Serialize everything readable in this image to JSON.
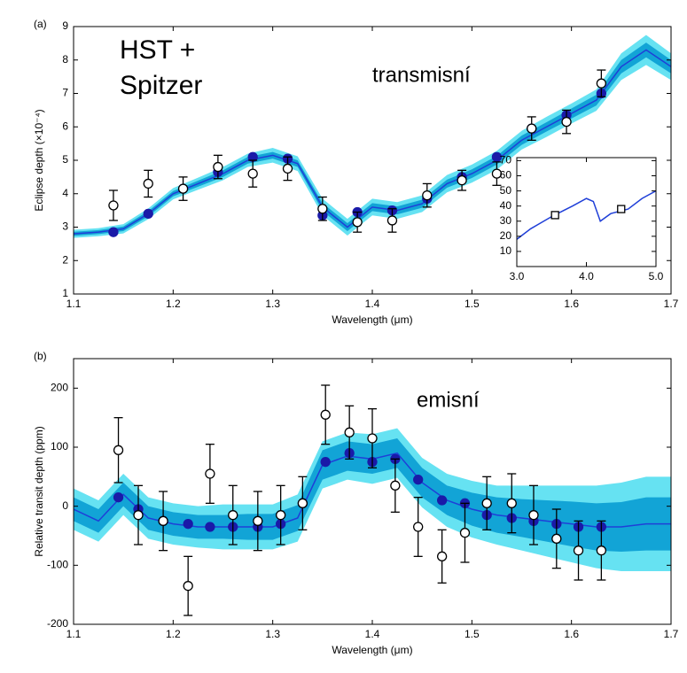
{
  "labels": {
    "instrument": [
      "HST +",
      "Spitzer"
    ],
    "panel_a_note": "transmisní",
    "panel_b_note": "emisní"
  },
  "chart_data": [
    {
      "type": "line",
      "panel_label": "(a)",
      "xlabel": "Wavelength (μm)",
      "ylabel": "Eclipse depth (×10⁻⁴)",
      "xlim": [
        1.1,
        1.7
      ],
      "xticks": [
        1.1,
        1.2,
        1.3,
        1.4,
        1.5,
        1.6,
        1.7
      ],
      "ylim": [
        1,
        9
      ],
      "yticks": [
        1,
        2,
        3,
        4,
        5,
        6,
        7,
        8,
        9
      ],
      "series": [
        {
          "style": "line",
          "color": "#1f3fd8",
          "band_colors": [
            "#12a4d6",
            "#66e2f2"
          ],
          "x": [
            1.1,
            1.125,
            1.15,
            1.175,
            1.2,
            1.225,
            1.25,
            1.275,
            1.3,
            1.325,
            1.35,
            1.375,
            1.4,
            1.425,
            1.45,
            1.475,
            1.5,
            1.525,
            1.55,
            1.575,
            1.6,
            1.625,
            1.65,
            1.675,
            1.7
          ],
          "values": [
            2.8,
            2.85,
            2.95,
            3.4,
            4.0,
            4.3,
            4.6,
            5.0,
            5.15,
            4.9,
            3.6,
            3.0,
            3.6,
            3.5,
            3.7,
            4.3,
            4.6,
            5.0,
            5.6,
            6.0,
            6.4,
            6.8,
            7.8,
            8.3,
            7.8
          ],
          "band_inner": [
            0.06,
            0.06,
            0.07,
            0.08,
            0.08,
            0.09,
            0.1,
            0.1,
            0.1,
            0.1,
            0.12,
            0.12,
            0.12,
            0.12,
            0.12,
            0.12,
            0.13,
            0.13,
            0.14,
            0.14,
            0.15,
            0.16,
            0.2,
            0.22,
            0.2
          ],
          "band_outer": [
            0.12,
            0.12,
            0.14,
            0.16,
            0.17,
            0.18,
            0.2,
            0.2,
            0.22,
            0.22,
            0.25,
            0.25,
            0.25,
            0.25,
            0.25,
            0.26,
            0.27,
            0.28,
            0.28,
            0.3,
            0.3,
            0.32,
            0.4,
            0.45,
            0.4
          ]
        },
        {
          "style": "scatter",
          "marker": "filled",
          "color": "#1a1aa8",
          "x": [
            1.14,
            1.175,
            1.21,
            1.245,
            1.28,
            1.315,
            1.35,
            1.385,
            1.42,
            1.455,
            1.49,
            1.525,
            1.56,
            1.595,
            1.63
          ],
          "values": [
            2.85,
            3.4,
            4.15,
            4.65,
            5.1,
            5.05,
            3.35,
            3.45,
            3.5,
            3.85,
            4.5,
            5.1,
            5.95,
            6.35,
            7.0
          ]
        },
        {
          "style": "scatter",
          "marker": "open",
          "color": "#000000",
          "x": [
            1.14,
            1.175,
            1.21,
            1.245,
            1.28,
            1.315,
            1.35,
            1.385,
            1.42,
            1.455,
            1.49,
            1.525,
            1.56,
            1.595,
            1.63
          ],
          "values": [
            3.65,
            4.3,
            4.15,
            4.8,
            4.6,
            4.75,
            3.55,
            3.15,
            3.2,
            3.95,
            4.4,
            4.6,
            5.95,
            6.15,
            7.3
          ],
          "errors": [
            0.45,
            0.4,
            0.35,
            0.35,
            0.4,
            0.35,
            0.35,
            0.3,
            0.35,
            0.35,
            0.3,
            0.35,
            0.35,
            0.35,
            0.4
          ]
        }
      ]
    },
    {
      "type": "line",
      "xlim": [
        3,
        5
      ],
      "xticks": [
        {
          "value": 3,
          "label": "3.0"
        },
        {
          "value": 4,
          "label": "4.0"
        },
        {
          "value": 5,
          "label": "5.0"
        }
      ],
      "ylim": [
        0,
        72
      ],
      "yticks": [
        10,
        20,
        30,
        40,
        50,
        60,
        70
      ],
      "series": [
        {
          "style": "line",
          "color": "#1f3fd8",
          "x": [
            3.0,
            3.2,
            3.5,
            3.8,
            4.0,
            4.1,
            4.2,
            4.35,
            4.6,
            4.8,
            5.0
          ],
          "values": [
            18,
            25,
            33,
            40,
            45,
            43,
            30,
            35,
            38,
            45,
            50
          ]
        },
        {
          "style": "scatter",
          "marker": "square",
          "color": "#000000",
          "x": [
            3.55,
            4.5
          ],
          "values": [
            34,
            38
          ]
        }
      ]
    },
    {
      "type": "line",
      "panel_label": "(b)",
      "xlabel": "Wavelength (μm)",
      "ylabel": "Relative transit depth (ppm)",
      "xlim": [
        1.1,
        1.7
      ],
      "xticks": [
        1.1,
        1.2,
        1.3,
        1.4,
        1.5,
        1.6,
        1.7
      ],
      "ylim": [
        -200,
        250
      ],
      "yticks": [
        -200,
        -100,
        0,
        100,
        200
      ],
      "series": [
        {
          "style": "line",
          "color": "#1f3fd8",
          "band_colors": [
            "#12a4d6",
            "#66e2f2"
          ],
          "x": [
            1.1,
            1.125,
            1.15,
            1.175,
            1.2,
            1.225,
            1.25,
            1.275,
            1.3,
            1.325,
            1.35,
            1.375,
            1.4,
            1.425,
            1.45,
            1.475,
            1.5,
            1.525,
            1.55,
            1.575,
            1.6,
            1.625,
            1.65,
            1.675,
            1.7
          ],
          "values": [
            -5,
            -25,
            20,
            -20,
            -30,
            -35,
            -35,
            -35,
            -35,
            -20,
            70,
            85,
            80,
            90,
            40,
            10,
            -5,
            -15,
            -20,
            -25,
            -30,
            -35,
            -35,
            -30,
            -30
          ],
          "band_inner": [
            20,
            20,
            20,
            20,
            20,
            20,
            20,
            22,
            22,
            22,
            25,
            25,
            25,
            25,
            25,
            25,
            28,
            30,
            32,
            35,
            38,
            40,
            42,
            45,
            45
          ],
          "band_outer": [
            35,
            35,
            35,
            35,
            35,
            35,
            38,
            38,
            38,
            40,
            40,
            40,
            42,
            42,
            42,
            45,
            48,
            50,
            55,
            60,
            65,
            70,
            75,
            80,
            80
          ]
        },
        {
          "style": "scatter",
          "marker": "filled",
          "color": "#1a1aa8",
          "x": [
            1.145,
            1.165,
            1.19,
            1.215,
            1.237,
            1.26,
            1.285,
            1.308,
            1.33,
            1.353,
            1.377,
            1.4,
            1.423,
            1.446,
            1.47,
            1.493,
            1.515,
            1.54,
            1.562,
            1.585,
            1.607,
            1.63
          ],
          "values": [
            15,
            -5,
            -25,
            -30,
            -35,
            -35,
            -35,
            -30,
            5,
            75,
            90,
            75,
            80,
            45,
            10,
            5,
            -15,
            -20,
            -25,
            -30,
            -35,
            -35
          ]
        },
        {
          "style": "scatter",
          "marker": "open",
          "color": "#000000",
          "x": [
            1.145,
            1.165,
            1.19,
            1.215,
            1.237,
            1.26,
            1.285,
            1.308,
            1.33,
            1.353,
            1.377,
            1.4,
            1.423,
            1.446,
            1.47,
            1.493,
            1.515,
            1.54,
            1.562,
            1.585,
            1.607,
            1.63
          ],
          "values": [
            95,
            -15,
            -25,
            -135,
            55,
            -15,
            -25,
            -15,
            5,
            155,
            125,
            115,
            35,
            -35,
            -85,
            -45,
            5,
            5,
            -15,
            -55,
            -75,
            -75
          ],
          "errors": [
            55,
            50,
            50,
            50,
            50,
            50,
            50,
            50,
            45,
            50,
            45,
            50,
            45,
            50,
            45,
            50,
            45,
            50,
            50,
            50,
            50,
            50
          ]
        }
      ]
    }
  ]
}
